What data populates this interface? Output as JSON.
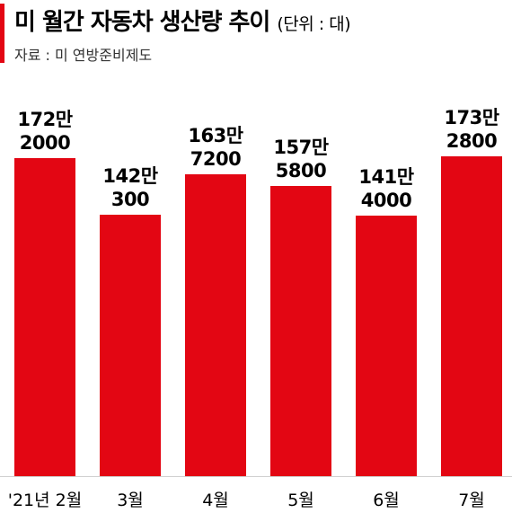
{
  "header": {
    "title": "미 월간 자동차 생산량 추이",
    "unit": "(단위 : 대)",
    "source": "자료 : 미 연방준비제도"
  },
  "colors": {
    "bar": "#e30613",
    "accent": "#e30613"
  },
  "chart_data": {
    "type": "bar",
    "categories": [
      "'21년 2월",
      "3월",
      "4월",
      "5월",
      "6월",
      "7월"
    ],
    "values": [
      1722000,
      1420300,
      1637200,
      1575800,
      1414000,
      1732800
    ],
    "value_labels": [
      [
        "172만",
        "2000"
      ],
      [
        "142만",
        "300"
      ],
      [
        "163만",
        "7200"
      ],
      [
        "157만",
        "5800"
      ],
      [
        "141만",
        "4000"
      ],
      [
        "173만",
        "2800"
      ]
    ],
    "title": "미 월간 자동차 생산량 추이",
    "xlabel": "",
    "ylabel": "",
    "ylim": [
      0,
      1800000
    ],
    "grid": false,
    "legend": "none"
  }
}
